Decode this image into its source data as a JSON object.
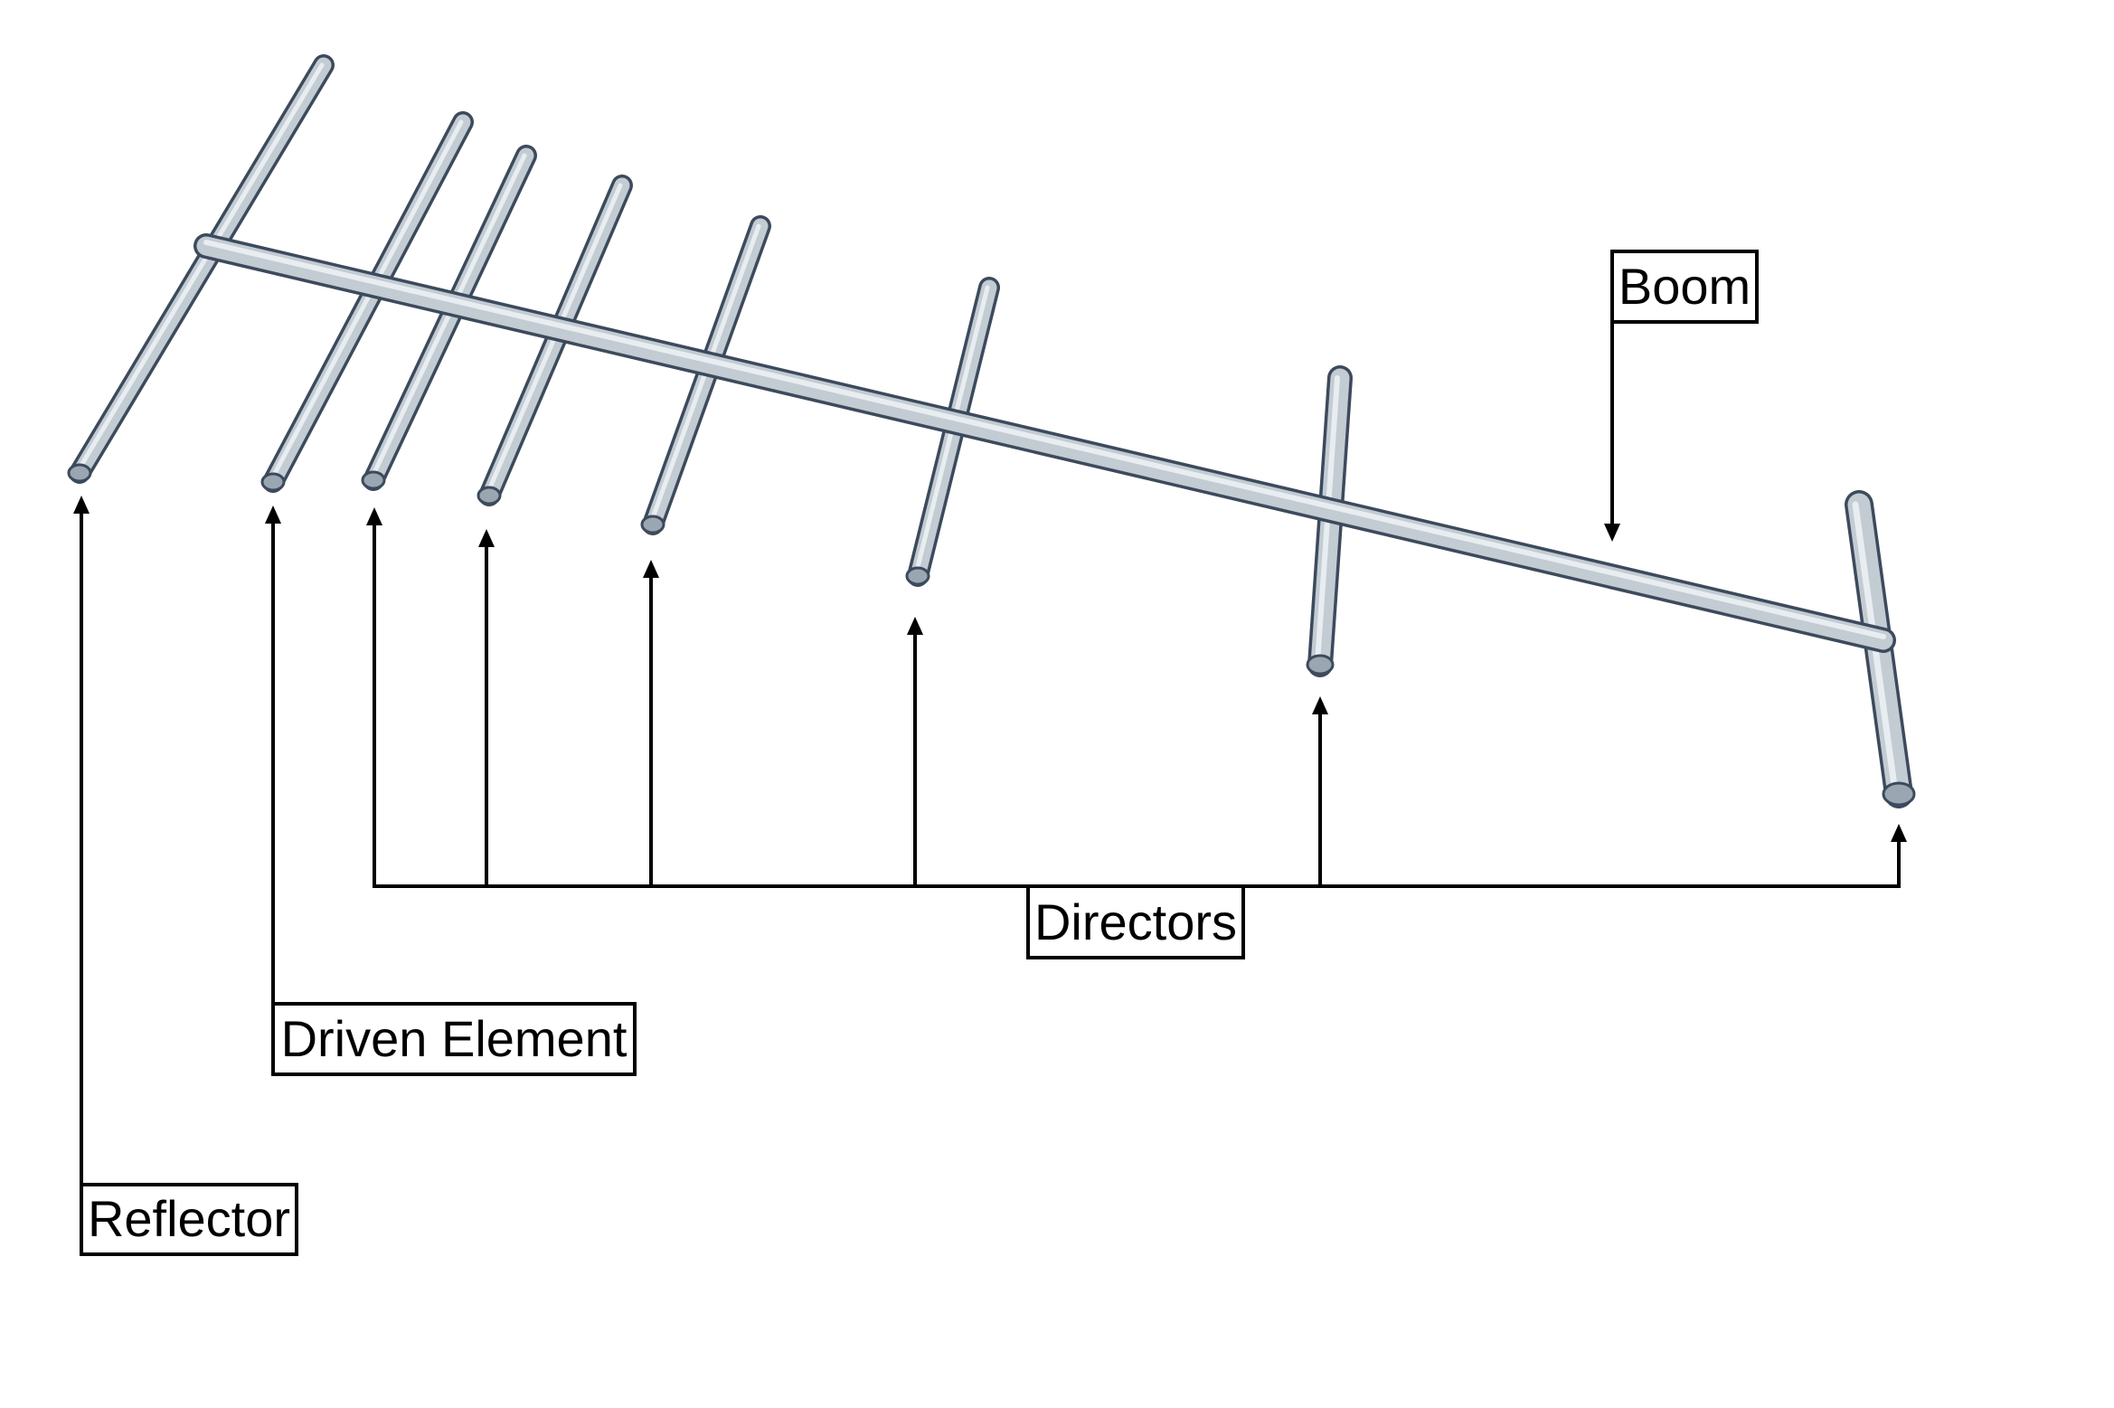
{
  "labels": {
    "boom": "Boom",
    "directors": "Directors",
    "driven_element": "Driven Element",
    "reflector": "Reflector"
  },
  "colors": {
    "rod_outline": "#3c4a5c",
    "rod_fill": "#c3cbd3",
    "rod_highlight": "#e8edf1",
    "rod_end": "#9aa6b2",
    "line": "#000000",
    "background": "#ffffff"
  }
}
